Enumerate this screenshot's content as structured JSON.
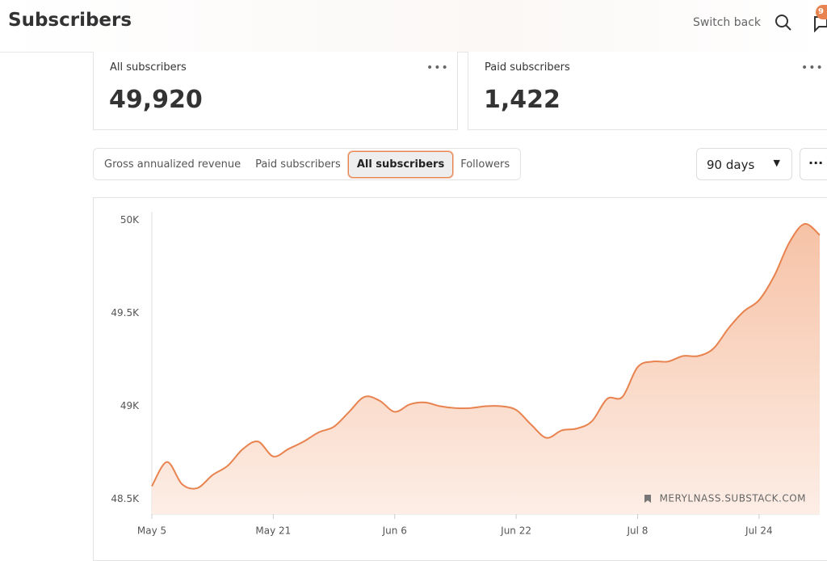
{
  "header": {
    "title": "Subscribers",
    "switch_back": "Switch back",
    "notification_count": "9"
  },
  "cards": [
    {
      "label": "All subscribers",
      "value": "49,920"
    },
    {
      "label": "Paid subscribers",
      "value": "1,422"
    }
  ],
  "tabs": [
    {
      "label": "Gross annualized revenue",
      "active": false
    },
    {
      "label": "Paid subscribers",
      "active": false
    },
    {
      "label": "All subscribers",
      "active": true
    },
    {
      "label": "Followers",
      "active": false
    }
  ],
  "range": "90 days",
  "chart_data": {
    "type": "line",
    "color": "#e8834f",
    "area": true,
    "grid": false,
    "watermark": "MERYLNASS.SUBSTACK.COM",
    "categories": [
      "May 5",
      null,
      null,
      null,
      null,
      null,
      null,
      null,
      "May 21",
      null,
      null,
      null,
      null,
      null,
      null,
      null,
      "Jun 6",
      null,
      null,
      null,
      null,
      null,
      null,
      null,
      "Jun 22",
      null,
      null,
      null,
      null,
      null,
      null,
      null,
      "Jul 8",
      null,
      null,
      null,
      null,
      null,
      null,
      null,
      "Jul 24",
      null,
      null,
      null,
      null
    ],
    "values": [
      48570,
      48700,
      48580,
      48560,
      48630,
      48680,
      48770,
      48810,
      48730,
      48770,
      48810,
      48860,
      48890,
      48970,
      49050,
      49030,
      48970,
      49010,
      49020,
      49000,
      48990,
      48990,
      49000,
      49000,
      48980,
      48900,
      48830,
      48870,
      48880,
      48920,
      49040,
      49050,
      49210,
      49240,
      49240,
      49270,
      49270,
      49310,
      49420,
      49510,
      49570,
      49700,
      49880,
      49980,
      49920
    ],
    "ylim": [
      48420,
      50045
    ],
    "yticks": [
      {
        "value": 48500,
        "label": "48.5K"
      },
      {
        "value": 49000,
        "label": "49K"
      },
      {
        "value": 49500,
        "label": "49.5K"
      },
      {
        "value": 50000,
        "label": "50K"
      }
    ]
  }
}
